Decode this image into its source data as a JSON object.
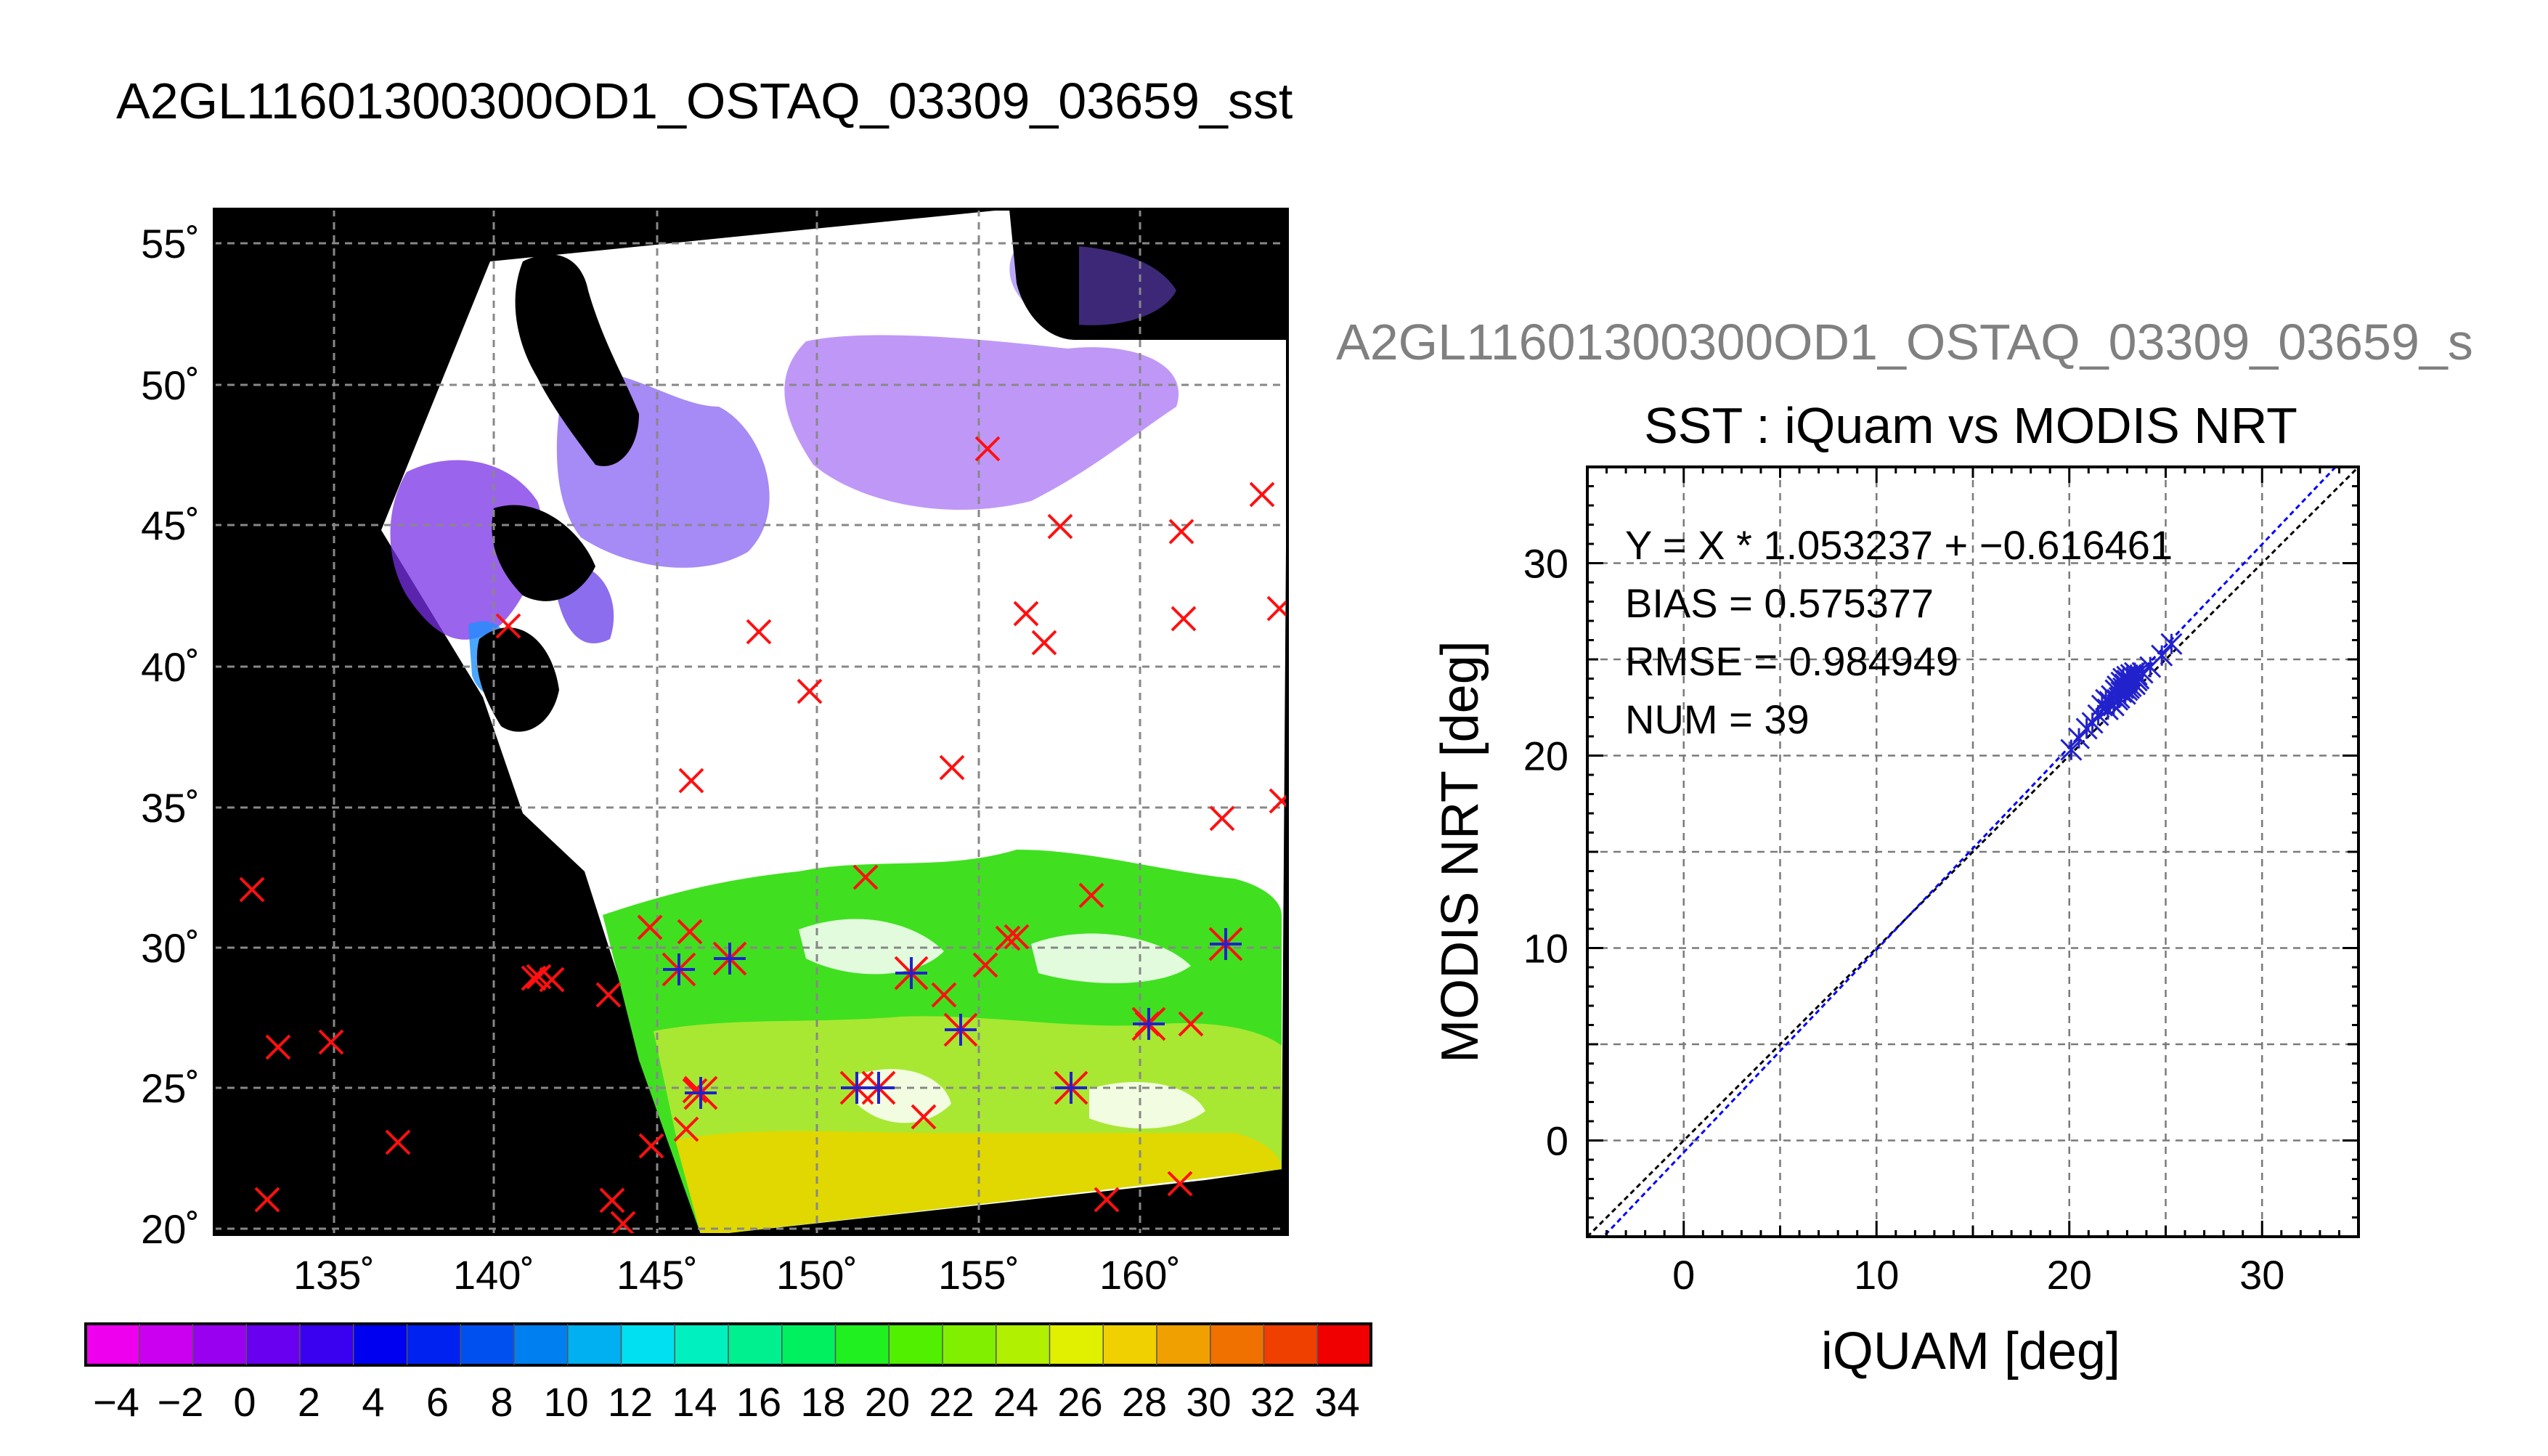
{
  "map": {
    "title": "A2GL11601300300OD1_OSTAQ_03309_03659_sst",
    "lon_ticks": [
      "135˚",
      "140˚",
      "145˚",
      "150˚",
      "155˚",
      "160˚"
    ],
    "lat_ticks": [
      "55˚",
      "50˚",
      "45˚",
      "40˚",
      "35˚",
      "30˚",
      "25˚",
      "20˚"
    ]
  },
  "colorbar": {
    "labels": [
      "−4",
      "−2",
      "0",
      "2",
      "4",
      "6",
      "8",
      "10",
      "12",
      "14",
      "16",
      "18",
      "20",
      "22",
      "24",
      "26",
      "28",
      "30",
      "32",
      "34"
    ],
    "colors": [
      "#ee00ee",
      "#cc00f0",
      "#9a00f0",
      "#6a00f0",
      "#3a00f0",
      "#0000f0",
      "#0022f0",
      "#0050f0",
      "#0080f0",
      "#00b0f0",
      "#00e0f0",
      "#00f0c0",
      "#00f090",
      "#00f060",
      "#20f020",
      "#50f000",
      "#80f000",
      "#b0f000",
      "#e0f000",
      "#f0d000",
      "#f0a000",
      "#f07000",
      "#f04000",
      "#f00000"
    ]
  },
  "scatter_header": "A2GL11601300300OD1_OSTAQ_03309_03659_s",
  "chart_data": {
    "type": "scatter",
    "title": "SST : iQuam vs MODIS NRT",
    "xlabel": "iQUAM [deg]",
    "ylabel": "MODIS NRT [deg]",
    "xlim": [
      -5,
      35
    ],
    "ylim": [
      -5,
      35
    ],
    "xticks": [
      "0",
      "10",
      "20",
      "30"
    ],
    "yticks": [
      "0",
      "10",
      "20",
      "30"
    ],
    "grid": true,
    "stats": {
      "fit": "Y = X * 1.053237 + −0.616461",
      "bias": "BIAS = 0.575377",
      "rmse": "RMSE = 0.984949",
      "num": "NUM = 39"
    },
    "fit_slope": 1.053237,
    "fit_intercept": -0.616461,
    "colors": {
      "points": "#2222cc",
      "fit_line": "#0000ff",
      "identity_line": "#000000"
    },
    "x": [
      20.1,
      20.5,
      20.9,
      21.2,
      21.5,
      21.7,
      21.9,
      22.0,
      22.1,
      22.2,
      22.3,
      22.4,
      22.5,
      22.5,
      22.6,
      22.7,
      22.7,
      22.8,
      22.8,
      22.9,
      22.9,
      23.0,
      23.0,
      23.0,
      23.1,
      23.1,
      23.2,
      23.2,
      23.3,
      23.3,
      23.4,
      23.4,
      23.5,
      23.5,
      23.6,
      23.8,
      24.2,
      24.8,
      25.3
    ],
    "y": [
      20.3,
      20.9,
      21.4,
      21.7,
      22.1,
      22.6,
      22.9,
      22.4,
      22.8,
      23.1,
      22.6,
      23.4,
      22.9,
      23.6,
      23.0,
      23.3,
      23.8,
      23.5,
      24.0,
      23.2,
      23.7,
      23.4,
      23.9,
      24.1,
      23.5,
      24.0,
      23.6,
      24.2,
      23.8,
      24.1,
      23.7,
      24.3,
      23.9,
      24.2,
      24.0,
      24.3,
      24.6,
      25.2,
      25.8
    ]
  }
}
